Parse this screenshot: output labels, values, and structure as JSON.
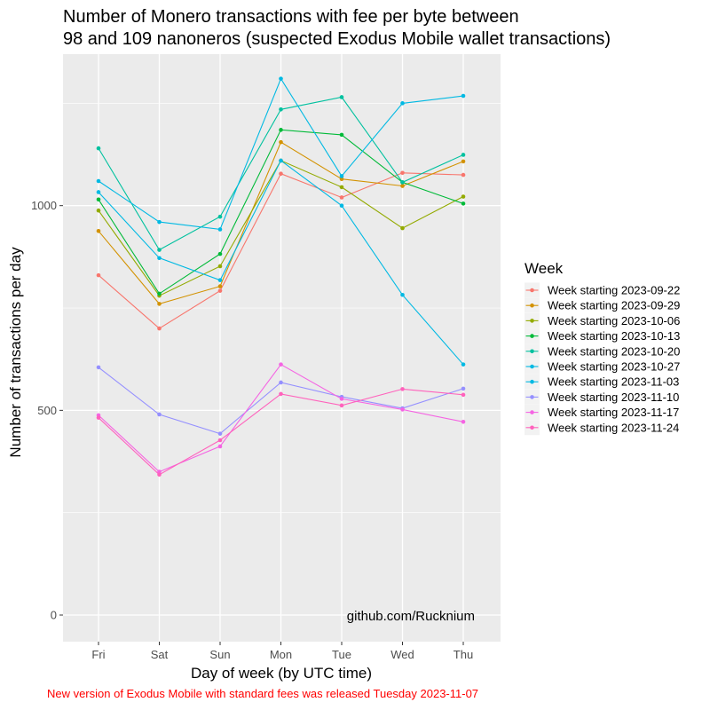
{
  "chart_data": {
    "type": "line",
    "title_lines": [
      "Number of Monero transactions with fee per byte between",
      "98 and 109 nanoneros (suspected Exodus Mobile wallet transactions)"
    ],
    "xlabel": "Day of week (by UTC time)",
    "ylabel": "Number of transactions per day",
    "categories": [
      "Fri",
      "Sat",
      "Sun",
      "Mon",
      "Tue",
      "Wed",
      "Thu"
    ],
    "yticks": [
      0,
      500,
      1000
    ],
    "ylim": [
      -65,
      1370
    ],
    "grid": true,
    "legend_title": "Week",
    "legend_position": "right",
    "watermark": "github.com/Rucknium",
    "caption": "New version of Exodus Mobile with standard fees was released Tuesday 2023-11-07",
    "caption_color": "#ff0000",
    "panel_background": "#ebebeb",
    "series": [
      {
        "name": "Week starting 2023-09-22",
        "color": "#F8766D",
        "values": [
          830,
          700,
          792,
          1078,
          1020,
          1080,
          1075
        ]
      },
      {
        "name": "Week starting 2023-09-29",
        "color": "#D39200",
        "values": [
          938,
          760,
          803,
          1155,
          1065,
          1048,
          1108
        ]
      },
      {
        "name": "Week starting 2023-10-06",
        "color": "#93AA00",
        "values": [
          988,
          780,
          852,
          1110,
          1045,
          945,
          1022
        ]
      },
      {
        "name": "Week starting 2023-10-13",
        "color": "#00BA38",
        "values": [
          1015,
          785,
          882,
          1185,
          1173,
          1057,
          1005
        ]
      },
      {
        "name": "Week starting 2023-10-20",
        "color": "#00C19F",
        "values": [
          1140,
          892,
          973,
          1235,
          1265,
          1057,
          1124
        ]
      },
      {
        "name": "Week starting 2023-10-27",
        "color": "#00B9E3",
        "values": [
          1060,
          960,
          942,
          1310,
          1072,
          1250,
          1268
        ]
      },
      {
        "name": "Week starting 2023-11-03",
        "color": "#00B9E3",
        "values": [
          1033,
          872,
          818,
          1110,
          1000,
          782,
          612
        ]
      },
      {
        "name": "Week starting 2023-11-10",
        "color": "#9590FF",
        "values": [
          605,
          490,
          443,
          568,
          533,
          505,
          553
        ]
      },
      {
        "name": "Week starting 2023-11-17",
        "color": "#F564E3",
        "values": [
          488,
          350,
          412,
          612,
          528,
          502,
          472
        ]
      },
      {
        "name": "Week starting 2023-11-24",
        "color": "#FF62BC",
        "values": [
          482,
          343,
          427,
          540,
          512,
          552,
          538
        ]
      }
    ]
  }
}
